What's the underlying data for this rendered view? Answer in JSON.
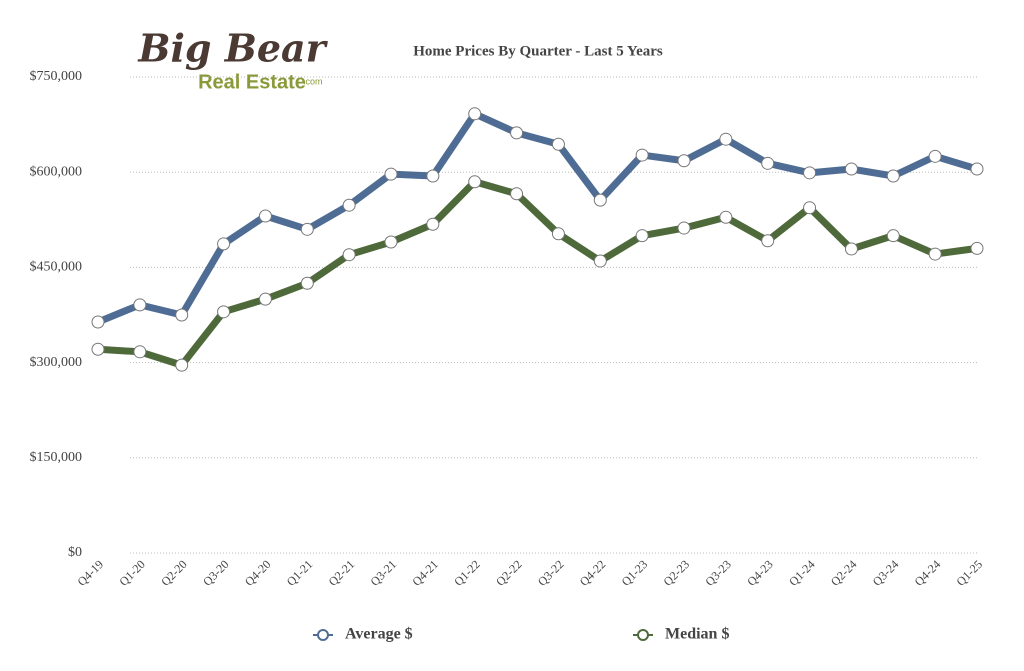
{
  "logo": {
    "name": "Big Bear",
    "sub": "Real Estate",
    "suffix": ".com"
  },
  "chart_data": {
    "type": "line",
    "title": "Home Prices By Quarter - Last 5 Years",
    "categories": [
      "Q4-19",
      "Q1-20",
      "Q2-20",
      "Q3-20",
      "Q4-20",
      "Q1-21",
      "Q2-21",
      "Q3-21",
      "Q4-21",
      "Q1-22",
      "Q2-22",
      "Q3-22",
      "Q4-22",
      "Q1-23",
      "Q2-23",
      "Q3-23",
      "Q4-23",
      "Q1-24",
      "Q2-24",
      "Q3-24",
      "Q4-24",
      "Q1-25"
    ],
    "series": [
      {
        "name": "Average $",
        "color": "#4f6d94",
        "values": [
          364000,
          391000,
          375000,
          487000,
          531000,
          510000,
          548000,
          597000,
          594000,
          692000,
          662000,
          644000,
          556000,
          627000,
          618000,
          652000,
          614000,
          599000,
          605000,
          594000,
          625000,
          605000
        ]
      },
      {
        "name": "Median $",
        "color": "#4e6a3a",
        "values": [
          321000,
          317000,
          296000,
          380000,
          400000,
          425000,
          470000,
          490000,
          518000,
          585000,
          566000,
          503000,
          460000,
          500000,
          512000,
          529000,
          492000,
          544000,
          479000,
          500000,
          471000,
          480000
        ]
      }
    ],
    "ylim": [
      0,
      750000
    ],
    "yticks": [
      {
        "value": 0,
        "label": "$0"
      },
      {
        "value": 150000,
        "label": "$150,000"
      },
      {
        "value": 300000,
        "label": "$300,000"
      },
      {
        "value": 450000,
        "label": "$450,000"
      },
      {
        "value": 600000,
        "label": "$600,000"
      },
      {
        "value": 750000,
        "label": "$750,000"
      }
    ],
    "grid": true,
    "legend": "bottom"
  }
}
